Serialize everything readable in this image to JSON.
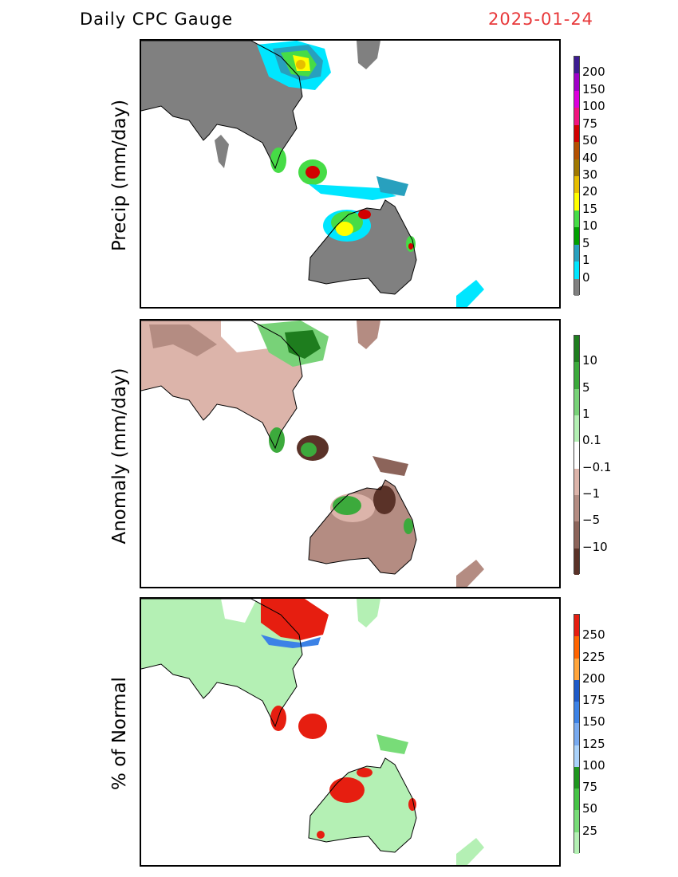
{
  "header": {
    "title": "Daily CPC Gauge",
    "date": "2025-01-24"
  },
  "panels": [
    {
      "ylabel": "Precip (mm/day)",
      "legend": {
        "labels": [
          "200",
          "150",
          "100",
          "75",
          "50",
          "40",
          "30",
          "20",
          "15",
          "10",
          "5",
          "1",
          "0"
        ],
        "colors": [
          "#3c1b92",
          "#a000c8",
          "#dc00dc",
          "#f0147f",
          "#d20000",
          "#b45000",
          "#a07800",
          "#e6be00",
          "#ffff00",
          "#46dc46",
          "#00a000",
          "#28a0be",
          "#00e6ff",
          "#808080"
        ]
      }
    },
    {
      "ylabel": "Anomaly (mm/day)",
      "legend": {
        "labels": [
          "10",
          "5",
          "1",
          "0.1",
          "−0.1",
          "−1",
          "−5",
          "−10"
        ],
        "colors": [
          "#1e7d1e",
          "#3caa3c",
          "#78d278",
          "#b4f0b4",
          "#ffffff",
          "#dcb4aa",
          "#b48c82",
          "#8c645a",
          "#5a3228"
        ]
      }
    },
    {
      "ylabel": "% of Normal",
      "legend": {
        "labels": [
          "250",
          "225",
          "200",
          "175",
          "150",
          "125",
          "100",
          "75",
          "50",
          "25"
        ],
        "colors": [
          "#e61e10",
          "#ff6400",
          "#ffa53c",
          "#1e5ac8",
          "#3c82e6",
          "#78aaf0",
          "#aad2fa",
          "#1e961e",
          "#46c346",
          "#78dc78",
          "#b4f0b4"
        ]
      }
    }
  ]
}
